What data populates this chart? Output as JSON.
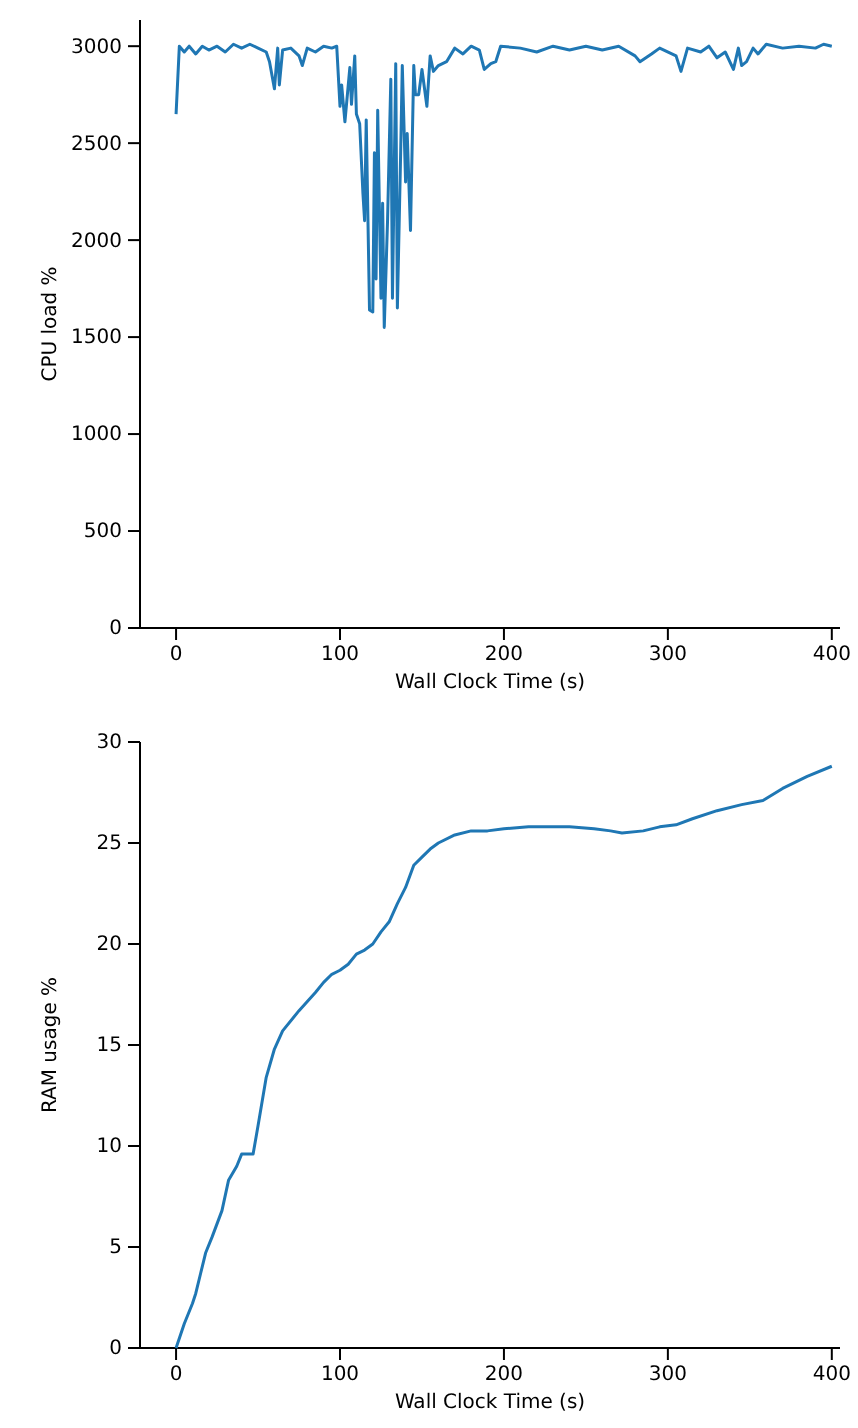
{
  "chart_data": [
    {
      "type": "line",
      "xlabel": "Wall Clock Time (s)",
      "ylabel": "CPU load %",
      "xlim": [
        -22,
        405
      ],
      "ylim": [
        0,
        3135
      ],
      "xticks": [
        0,
        100,
        200,
        300,
        400
      ],
      "yticks": [
        0,
        500,
        1000,
        1500,
        2000,
        2500,
        3000
      ],
      "grid": false,
      "marker": "none",
      "line_style": "solid",
      "series": [
        {
          "color": "#1f77b4",
          "x": [
            0,
            2,
            5,
            8,
            12,
            16,
            20,
            25,
            30,
            35,
            40,
            45,
            50,
            55,
            57,
            60,
            62,
            63,
            65,
            70,
            75,
            77,
            80,
            85,
            90,
            95,
            98,
            100,
            101,
            103,
            106,
            107,
            109,
            110,
            112,
            114,
            115,
            116,
            118,
            120,
            121,
            122,
            123,
            125,
            126,
            127,
            129,
            131,
            132,
            134,
            135,
            137,
            138,
            140,
            141,
            143,
            145,
            146,
            148,
            150,
            153,
            155,
            157,
            160,
            165,
            170,
            175,
            180,
            185,
            188,
            192,
            195,
            198,
            210,
            220,
            230,
            240,
            250,
            260,
            270,
            280,
            283,
            290,
            295,
            305,
            308,
            312,
            320,
            325,
            330,
            335,
            340,
            343,
            345,
            348,
            352,
            355,
            360,
            370,
            380,
            390,
            395,
            400
          ],
          "values": [
            2650,
            3000,
            2970,
            3000,
            2960,
            3000,
            2980,
            3000,
            2970,
            3010,
            2990,
            3010,
            2990,
            2970,
            2920,
            2780,
            2990,
            2800,
            2980,
            2990,
            2950,
            2900,
            2990,
            2970,
            3000,
            2990,
            3000,
            2690,
            2800,
            2610,
            2890,
            2700,
            2950,
            2650,
            2600,
            2240,
            2100,
            2620,
            1640,
            1630,
            2450,
            1800,
            2670,
            1700,
            2190,
            1550,
            2100,
            2830,
            1700,
            2910,
            1650,
            2450,
            2900,
            2300,
            2550,
            2050,
            2900,
            2750,
            2750,
            2880,
            2690,
            2950,
            2870,
            2900,
            2920,
            2990,
            2960,
            3000,
            2980,
            2880,
            2910,
            2920,
            3000,
            2990,
            2970,
            3000,
            2980,
            3000,
            2980,
            3000,
            2950,
            2920,
            2960,
            2990,
            2950,
            2870,
            2990,
            2970,
            3000,
            2940,
            2970,
            2880,
            2990,
            2900,
            2920,
            2990,
            2960,
            3010,
            2990,
            3000,
            2990,
            3010,
            3000
          ]
        }
      ]
    },
    {
      "type": "line",
      "xlabel": "Wall Clock Time (s)",
      "ylabel": "RAM usage %",
      "xlim": [
        -22,
        405
      ],
      "ylim": [
        0,
        30
      ],
      "xticks": [
        0,
        100,
        200,
        300,
        400
      ],
      "yticks": [
        0,
        5,
        10,
        15,
        20,
        25,
        30
      ],
      "grid": false,
      "marker": "none",
      "line_style": "solid",
      "series": [
        {
          "color": "#1f77b4",
          "x": [
            0,
            5,
            10,
            12,
            15,
            18,
            22,
            28,
            32,
            37,
            40,
            47,
            50,
            55,
            60,
            65,
            75,
            85,
            90,
            95,
            100,
            105,
            110,
            115,
            120,
            125,
            130,
            135,
            140,
            145,
            150,
            155,
            160,
            170,
            180,
            190,
            200,
            215,
            240,
            255,
            265,
            272,
            285,
            295,
            305,
            315,
            330,
            345,
            358,
            370,
            385,
            400
          ],
          "values": [
            0,
            1.2,
            2.2,
            2.7,
            3.7,
            4.7,
            5.5,
            6.8,
            8.3,
            9.0,
            9.6,
            9.6,
            11,
            13.4,
            14.8,
            15.7,
            16.7,
            17.6,
            18.1,
            18.5,
            18.7,
            19.0,
            19.5,
            19.7,
            20.0,
            20.6,
            21.1,
            22.0,
            22.8,
            23.9,
            24.3,
            24.7,
            25.0,
            25.4,
            25.6,
            25.6,
            25.7,
            25.8,
            25.8,
            25.7,
            25.6,
            25.5,
            25.6,
            25.8,
            25.9,
            26.2,
            26.6,
            26.9,
            27.1,
            27.7,
            28.3,
            28.8
          ]
        }
      ]
    }
  ]
}
